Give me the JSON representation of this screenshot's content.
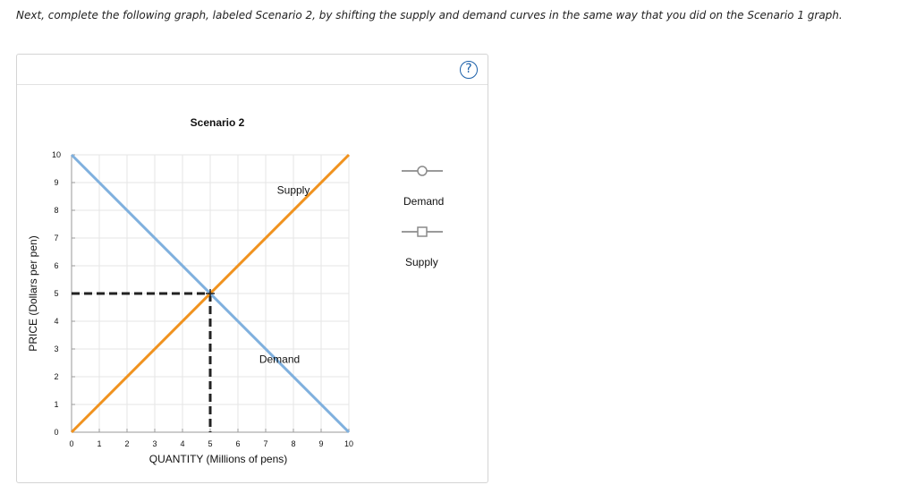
{
  "instructions": {
    "text": "Next, complete the following graph, labeled Scenario 2, by shifting the supply and demand curves in the same way that you did on the Scenario 1 graph."
  },
  "panel": {
    "help_label": "?"
  },
  "legend": {
    "items": [
      {
        "label": "Demand"
      },
      {
        "label": "Supply"
      }
    ]
  },
  "colors": {
    "demand": "#7fb0de",
    "supply": "#f0921e",
    "guide": "#222222",
    "grid": "#e6e6e6"
  },
  "icons": {
    "help": "question-circle-icon",
    "demand_marker": "circle-marker-icon",
    "supply_marker": "square-marker-icon"
  },
  "chart_data": {
    "type": "line",
    "title": "Scenario 2",
    "xlabel": "QUANTITY (Millions of pens)",
    "ylabel": "PRICE (Dollars per pen)",
    "xlim": [
      0,
      10
    ],
    "ylim": [
      0,
      10
    ],
    "xticks": [
      0,
      1,
      2,
      3,
      4,
      5,
      6,
      7,
      8,
      9,
      10
    ],
    "yticks": [
      0,
      1,
      2,
      3,
      4,
      5,
      6,
      7,
      8,
      9,
      10
    ],
    "grid": true,
    "series": [
      {
        "name": "Demand",
        "color": "#7fb0de",
        "points": [
          [
            0,
            10
          ],
          [
            10,
            0
          ]
        ],
        "label": "Demand",
        "label_at": [
          7.5,
          2.5
        ]
      },
      {
        "name": "Supply",
        "color": "#f0921e",
        "points": [
          [
            0,
            0
          ],
          [
            10,
            10
          ]
        ],
        "label": "Supply",
        "label_at": [
          8,
          8.6
        ]
      }
    ],
    "equilibrium": {
      "x": 5,
      "y": 5
    }
  }
}
